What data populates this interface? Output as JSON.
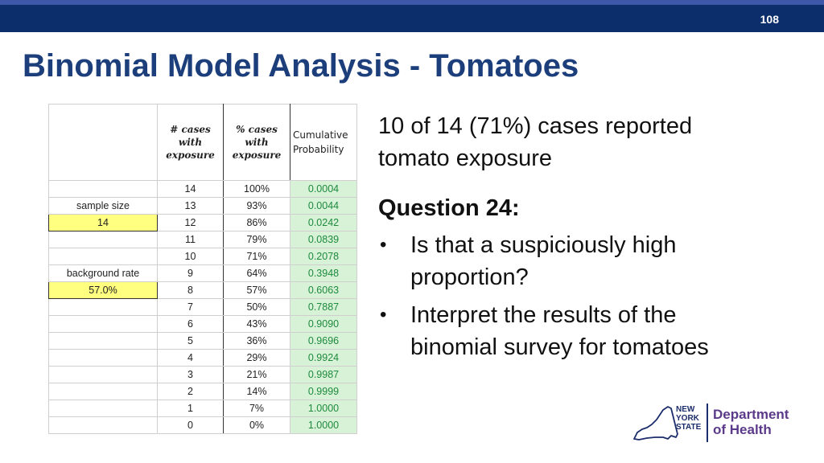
{
  "slide_number": "108",
  "title": "Binomial Model Analysis - Tomatoes",
  "table": {
    "headers": {
      "cases": [
        "# cases",
        "with",
        "exposure"
      ],
      "pct": [
        "% cases",
        "with",
        "exposure"
      ],
      "cumulative": [
        "Cumulative",
        "Probability"
      ]
    },
    "side": {
      "sample_size_label": "sample size",
      "sample_size_value": "14",
      "background_rate_label": "background rate",
      "background_rate_value": "57.0%"
    },
    "rows": [
      [
        "14",
        "100%",
        "0.0004"
      ],
      [
        "13",
        "93%",
        "0.0044"
      ],
      [
        "12",
        "86%",
        "0.0242"
      ],
      [
        "11",
        "79%",
        "0.0839"
      ],
      [
        "10",
        "71%",
        "0.2078"
      ],
      [
        "9",
        "64%",
        "0.3948"
      ],
      [
        "8",
        "57%",
        "0.6063"
      ],
      [
        "7",
        "50%",
        "0.7887"
      ],
      [
        "6",
        "43%",
        "0.9090"
      ],
      [
        "5",
        "36%",
        "0.9696"
      ],
      [
        "4",
        "29%",
        "0.9924"
      ],
      [
        "3",
        "21%",
        "0.9987"
      ],
      [
        "2",
        "14%",
        "0.9999"
      ],
      [
        "1",
        "7%",
        "1.0000"
      ],
      [
        "0",
        "0%",
        "1.0000"
      ]
    ]
  },
  "content": {
    "stat_line1": "10 of 14 (71%) cases reported",
    "stat_line2": "tomato exposure",
    "question": "Question 24:",
    "bullets": [
      {
        "line1": "Is that a suspiciously high",
        "line2": "proportion?"
      },
      {
        "line1": "Interpret the results of the",
        "line2": "binomial survey for tomatoes"
      }
    ]
  },
  "logo": {
    "state": [
      "NEW",
      "YORK",
      "STATE"
    ],
    "dept": [
      "Department",
      "of Health"
    ]
  },
  "colors": {
    "header_bar": "#0c2f6b",
    "title": "#1c3f7c",
    "probability_fill": "#d8f2d8",
    "input_fill": "#ffff80"
  }
}
